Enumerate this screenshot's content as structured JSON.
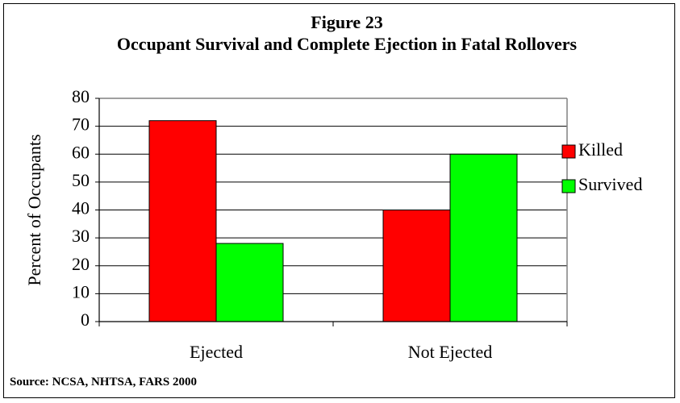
{
  "chart_data": {
    "type": "bar",
    "title": "Figure 23",
    "subtitle": "Occupant Survival and Complete Ejection in Fatal Rollovers",
    "y_label": "Percent of Occupants",
    "categories": [
      "Ejected",
      "Not Ejected"
    ],
    "series": [
      {
        "name": "Killed",
        "color": "#ff0000",
        "values": [
          72,
          40
        ]
      },
      {
        "name": "Survived",
        "color": "#00ff00",
        "values": [
          28,
          60
        ]
      }
    ],
    "ylim": [
      0,
      80
    ],
    "yticks": [
      0,
      10,
      20,
      30,
      40,
      50,
      60,
      70,
      80
    ],
    "grid": true,
    "legend": "right",
    "source": "Source: NCSA, NHTSA, FARS 2000"
  }
}
